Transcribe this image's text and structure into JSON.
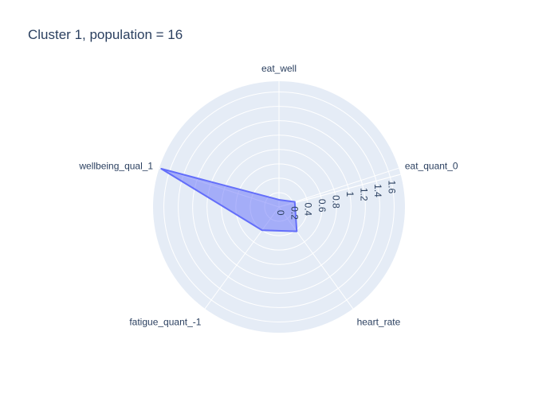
{
  "chart_data": {
    "type": "radar",
    "title": "Cluster 1, population = 16",
    "axes": [
      "eat_well",
      "eat_quant_0",
      "heart_rate",
      "fatigue_quant_-1",
      "wellbeing_qual_1"
    ],
    "series": [
      {
        "values": [
          0.1,
          0.23,
          0.42,
          0.4,
          1.72
        ],
        "color": "#636efa"
      }
    ],
    "radial_range": [
      0,
      1.75
    ],
    "radial_ticks": [
      0,
      0.2,
      0.4,
      0.6,
      0.8,
      1,
      1.2,
      1.4,
      1.6
    ],
    "radial_tick_labels": [
      "0",
      "0.2",
      "0.4",
      "0.6",
      "0.8",
      "1",
      "1.2",
      "1.4",
      "1.6"
    ],
    "radial_axis_angle_deg": 15,
    "grid": true,
    "background_color": "#e5ecf6"
  }
}
